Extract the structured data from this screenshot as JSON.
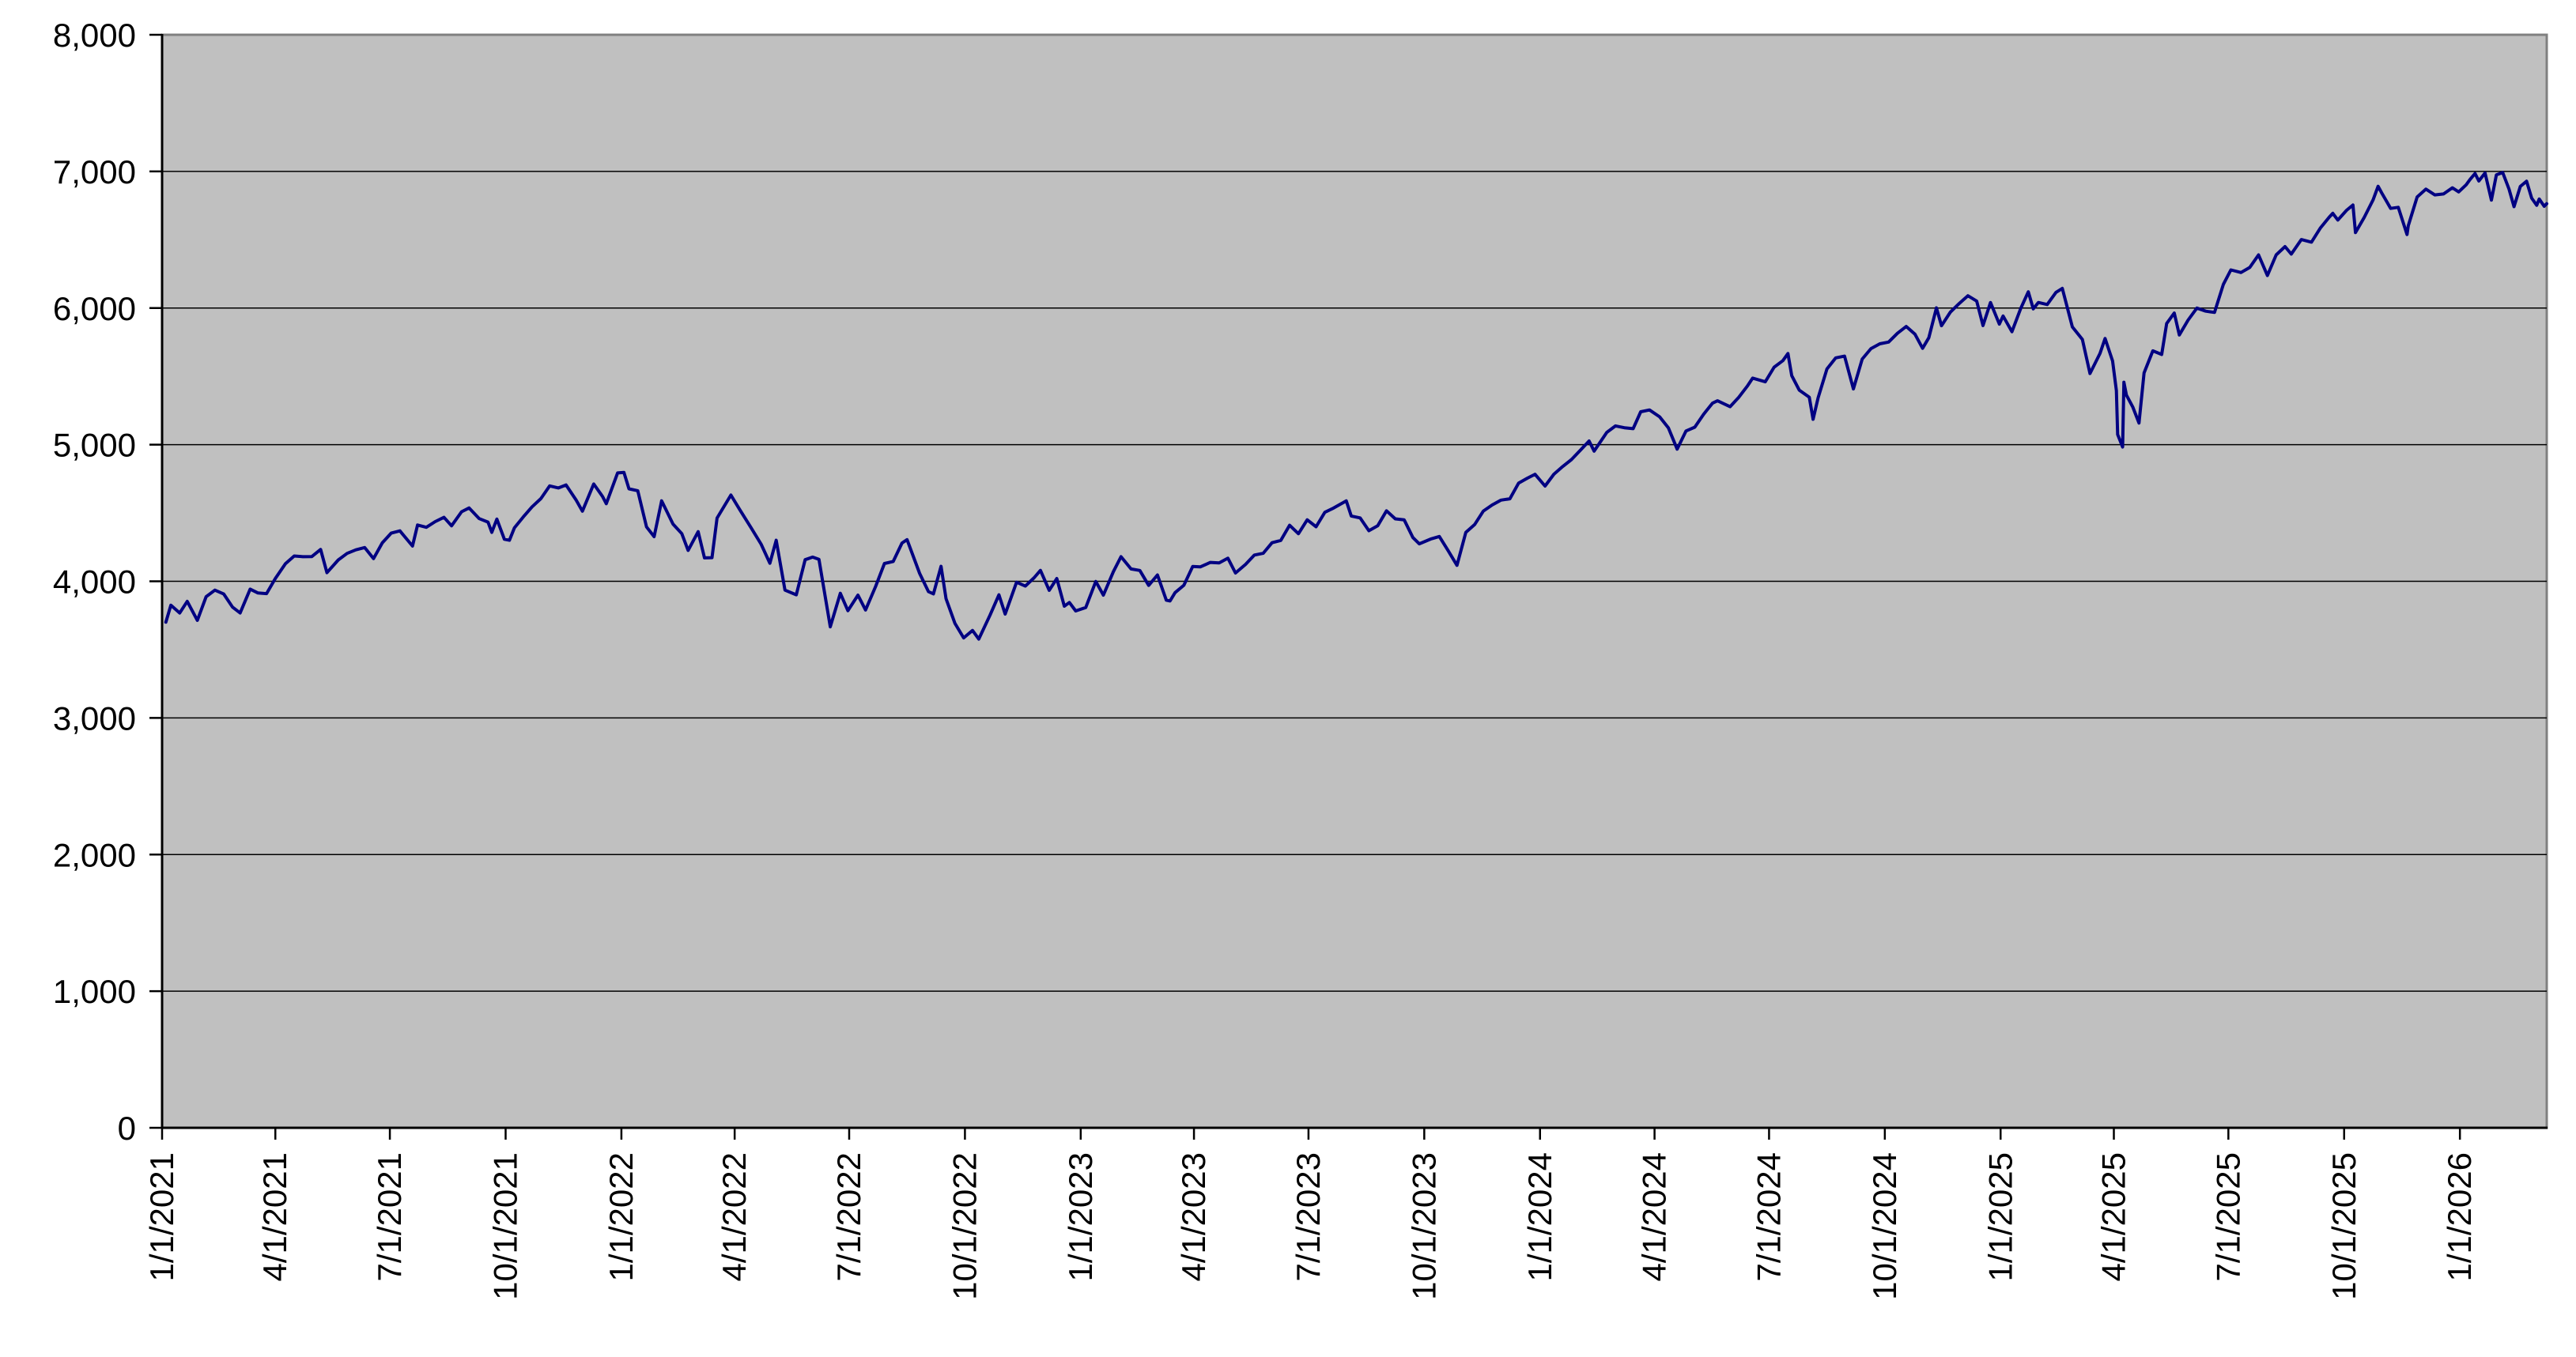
{
  "chart_data": {
    "type": "line",
    "title": "",
    "legend": "none",
    "grid": "horizontal",
    "colors": {
      "line": "#000082",
      "plot_bg": "#c0c0c0",
      "plot_border": "#808080",
      "gridline": "#000000",
      "axis": "#000000",
      "tick": "#000000",
      "label_text": "#000000",
      "page_bg": "#ffffff"
    },
    "y_axis": {
      "min": 0,
      "max": 8000,
      "step": 1000,
      "tick_values": [
        0,
        1000,
        2000,
        3000,
        4000,
        5000,
        6000,
        7000,
        8000
      ],
      "tick_labels": [
        "0",
        "1,000",
        "2,000",
        "3,000",
        "4,000",
        "5,000",
        "6,000",
        "7,000",
        "8,000"
      ]
    },
    "x_axis": {
      "start_date": "1/1/2021",
      "end_date": "3/11/2026",
      "label_rotation": -90,
      "tick_labels": [
        "1/1/2021",
        "4/1/2021",
        "7/1/2021",
        "10/1/2021",
        "1/1/2022",
        "4/1/2022",
        "7/1/2022",
        "10/1/2022",
        "1/1/2023",
        "4/1/2023",
        "7/1/2023",
        "10/1/2023",
        "1/1/2024",
        "4/1/2024",
        "7/1/2024",
        "10/1/2024",
        "1/1/2025",
        "4/1/2025",
        "7/1/2025",
        "10/1/2025",
        "1/1/2026"
      ]
    },
    "points": [
      [
        "1/4/2021",
        3701
      ],
      [
        "1/8/2021",
        3825
      ],
      [
        "1/15/2021",
        3768
      ],
      [
        "1/21/2021",
        3853
      ],
      [
        "1/29/2021",
        3714
      ],
      [
        "2/5/2021",
        3887
      ],
      [
        "2/12/2021",
        3935
      ],
      [
        "2/19/2021",
        3907
      ],
      [
        "2/26/2021",
        3811
      ],
      [
        "3/4/2021",
        3768
      ],
      [
        "3/12/2021",
        3943
      ],
      [
        "3/18/2021",
        3915
      ],
      [
        "3/25/2021",
        3910
      ],
      [
        "4/1/2021",
        4020
      ],
      [
        "4/9/2021",
        4129
      ],
      [
        "4/16/2021",
        4185
      ],
      [
        "4/23/2021",
        4180
      ],
      [
        "4/30/2021",
        4181
      ],
      [
        "5/7/2021",
        4233
      ],
      [
        "5/12/2021",
        4063
      ],
      [
        "5/21/2021",
        4156
      ],
      [
        "5/28/2021",
        4204
      ],
      [
        "6/4/2021",
        4230
      ],
      [
        "6/11/2021",
        4247
      ],
      [
        "6/18/2021",
        4166
      ],
      [
        "6/25/2021",
        4281
      ],
      [
        "7/2/2021",
        4352
      ],
      [
        "7/9/2021",
        4369
      ],
      [
        "7/19/2021",
        4258
      ],
      [
        "7/23/2021",
        4412
      ],
      [
        "7/30/2021",
        4395
      ],
      [
        "8/6/2021",
        4437
      ],
      [
        "8/13/2021",
        4468
      ],
      [
        "8/19/2021",
        4406
      ],
      [
        "8/27/2021",
        4509
      ],
      [
        "9/2/2021",
        4537
      ],
      [
        "9/10/2021",
        4459
      ],
      [
        "9/17/2021",
        4433
      ],
      [
        "9/20/2021",
        4358
      ],
      [
        "9/24/2021",
        4455
      ],
      [
        "9/30/2021",
        4308
      ],
      [
        "10/4/2021",
        4300
      ],
      [
        "10/8/2021",
        4391
      ],
      [
        "10/15/2021",
        4471
      ],
      [
        "10/22/2021",
        4545
      ],
      [
        "10/29/2021",
        4605
      ],
      [
        "11/5/2021",
        4698
      ],
      [
        "11/12/2021",
        4683
      ],
      [
        "11/18/2021",
        4705
      ],
      [
        "11/26/2021",
        4595
      ],
      [
        "12/1/2021",
        4513
      ],
      [
        "12/10/2021",
        4712
      ],
      [
        "12/17/2021",
        4621
      ],
      [
        "12/20/2021",
        4568
      ],
      [
        "12/29/2021",
        4793
      ],
      [
        "1/3/2022",
        4797
      ],
      [
        "1/7/2022",
        4677
      ],
      [
        "1/14/2022",
        4663
      ],
      [
        "1/21/2022",
        4398
      ],
      [
        "1/27/2022",
        4327
      ],
      [
        "2/2/2022",
        4589
      ],
      [
        "2/11/2022",
        4419
      ],
      [
        "2/18/2022",
        4349
      ],
      [
        "2/23/2022",
        4226
      ],
      [
        "3/3/2022",
        4363
      ],
      [
        "3/8/2022",
        4171
      ],
      [
        "3/14/2022",
        4173
      ],
      [
        "3/18/2022",
        4463
      ],
      [
        "3/29/2022",
        4631
      ],
      [
        "4/5/2022",
        4525
      ],
      [
        "4/14/2022",
        4393
      ],
      [
        "4/22/2022",
        4272
      ],
      [
        "4/29/2022",
        4132
      ],
      [
        "5/4/2022",
        4300
      ],
      [
        "5/11/2022",
        3935
      ],
      [
        "5/20/2022",
        3901
      ],
      [
        "5/27/2022",
        4158
      ],
      [
        "6/2/2022",
        4177
      ],
      [
        "6/7/2022",
        4160
      ],
      [
        "6/16/2022",
        3667
      ],
      [
        "6/24/2022",
        3912
      ],
      [
        "6/30/2022",
        3785
      ],
      [
        "7/8/2022",
        3899
      ],
      [
        "7/14/2022",
        3790
      ],
      [
        "7/22/2022",
        3962
      ],
      [
        "7/29/2022",
        4130
      ],
      [
        "8/5/2022",
        4145
      ],
      [
        "8/12/2022",
        4280
      ],
      [
        "8/16/2022",
        4305
      ],
      [
        "8/26/2022",
        4058
      ],
      [
        "9/2/2022",
        3924
      ],
      [
        "9/6/2022",
        3908
      ],
      [
        "9/12/2022",
        4110
      ],
      [
        "9/16/2022",
        3873
      ],
      [
        "9/23/2022",
        3693
      ],
      [
        "9/30/2022",
        3586
      ],
      [
        "10/7/2022",
        3640
      ],
      [
        "10/12/2022",
        3577
      ],
      [
        "10/21/2022",
        3753
      ],
      [
        "10/28/2022",
        3901
      ],
      [
        "11/2/2022",
        3760
      ],
      [
        "11/11/2022",
        3993
      ],
      [
        "11/18/2022",
        3965
      ],
      [
        "11/25/2022",
        4026
      ],
      [
        "11/30/2022",
        4080
      ],
      [
        "12/7/2022",
        3934
      ],
      [
        "12/13/2022",
        4020
      ],
      [
        "12/19/2022",
        3818
      ],
      [
        "12/23/2022",
        3845
      ],
      [
        "12/28/2022",
        3783
      ],
      [
        "1/5/2023",
        3808
      ],
      [
        "1/13/2023",
        3999
      ],
      [
        "1/19/2023",
        3899
      ],
      [
        "1/27/2023",
        4071
      ],
      [
        "2/2/2023",
        4180
      ],
      [
        "2/10/2023",
        4090
      ],
      [
        "2/17/2023",
        4079
      ],
      [
        "2/24/2023",
        3970
      ],
      [
        "3/3/2023",
        4046
      ],
      [
        "3/10/2023",
        3862
      ],
      [
        "3/13/2023",
        3856
      ],
      [
        "3/17/2023",
        3917
      ],
      [
        "3/24/2023",
        3971
      ],
      [
        "3/31/2023",
        4109
      ],
      [
        "4/6/2023",
        4105
      ],
      [
        "4/14/2023",
        4138
      ],
      [
        "4/21/2023",
        4134
      ],
      [
        "4/28/2023",
        4169
      ],
      [
        "5/4/2023",
        4061
      ],
      [
        "5/12/2023",
        4124
      ],
      [
        "5/19/2023",
        4192
      ],
      [
        "5/26/2023",
        4205
      ],
      [
        "6/2/2023",
        4282
      ],
      [
        "6/9/2023",
        4299
      ],
      [
        "6/16/2023",
        4410
      ],
      [
        "6/23/2023",
        4348
      ],
      [
        "6/30/2023",
        4450
      ],
      [
        "7/7/2023",
        4399
      ],
      [
        "7/14/2023",
        4505
      ],
      [
        "7/21/2023",
        4536
      ],
      [
        "7/31/2023",
        4589
      ],
      [
        "8/4/2023",
        4478
      ],
      [
        "8/11/2023",
        4464
      ],
      [
        "8/18/2023",
        4370
      ],
      [
        "8/25/2023",
        4406
      ],
      [
        "9/1/2023",
        4516
      ],
      [
        "9/8/2023",
        4457
      ],
      [
        "9/15/2023",
        4450
      ],
      [
        "9/22/2023",
        4320
      ],
      [
        "9/27/2023",
        4274
      ],
      [
        "10/6/2023",
        4309
      ],
      [
        "10/13/2023",
        4328
      ],
      [
        "10/20/2023",
        4224
      ],
      [
        "10/27/2023",
        4117
      ],
      [
        "11/3/2023",
        4358
      ],
      [
        "11/10/2023",
        4415
      ],
      [
        "11/17/2023",
        4514
      ],
      [
        "11/24/2023",
        4559
      ],
      [
        "12/1/2023",
        4594
      ],
      [
        "12/8/2023",
        4604
      ],
      [
        "12/15/2023",
        4719
      ],
      [
        "12/22/2023",
        4755
      ],
      [
        "12/28/2023",
        4783
      ],
      [
        "1/5/2024",
        4697
      ],
      [
        "1/12/2024",
        4784
      ],
      [
        "1/19/2024",
        4840
      ],
      [
        "1/26/2024",
        4891
      ],
      [
        "2/2/2024",
        4959
      ],
      [
        "2/9/2024",
        5027
      ],
      [
        "2/13/2024",
        4953
      ],
      [
        "2/23/2024",
        5089
      ],
      [
        "3/1/2024",
        5137
      ],
      [
        "3/8/2024",
        5124
      ],
      [
        "3/15/2024",
        5117
      ],
      [
        "3/21/2024",
        5241
      ],
      [
        "3/28/2024",
        5254
      ],
      [
        "4/5/2024",
        5204
      ],
      [
        "4/12/2024",
        5123
      ],
      [
        "4/19/2024",
        4967
      ],
      [
        "4/26/2024",
        5100
      ],
      [
        "5/3/2024",
        5128
      ],
      [
        "5/10/2024",
        5223
      ],
      [
        "5/17/2024",
        5303
      ],
      [
        "5/21/2024",
        5321
      ],
      [
        "5/31/2024",
        5278
      ],
      [
        "6/7/2024",
        5347
      ],
      [
        "6/14/2024",
        5432
      ],
      [
        "6/18/2024",
        5487
      ],
      [
        "6/28/2024",
        5460
      ],
      [
        "7/5/2024",
        5567
      ],
      [
        "7/12/2024",
        5615
      ],
      [
        "7/16/2024",
        5667
      ],
      [
        "7/19/2024",
        5505
      ],
      [
        "7/25/2024",
        5399
      ],
      [
        "8/2/2024",
        5347
      ],
      [
        "8/5/2024",
        5186
      ],
      [
        "8/9/2024",
        5344
      ],
      [
        "8/16/2024",
        5554
      ],
      [
        "8/23/2024",
        5635
      ],
      [
        "8/30/2024",
        5648
      ],
      [
        "9/6/2024",
        5408
      ],
      [
        "9/13/2024",
        5626
      ],
      [
        "9/20/2024",
        5703
      ],
      [
        "9/27/2024",
        5738
      ],
      [
        "10/4/2024",
        5751
      ],
      [
        "10/11/2024",
        5815
      ],
      [
        "10/18/2024",
        5865
      ],
      [
        "10/25/2024",
        5808
      ],
      [
        "10/31/2024",
        5705
      ],
      [
        "11/5/2024",
        5783
      ],
      [
        "11/11/2024",
        6001
      ],
      [
        "11/15/2024",
        5871
      ],
      [
        "11/22/2024",
        5969
      ],
      [
        "11/29/2024",
        6032
      ],
      [
        "12/6/2024",
        6090
      ],
      [
        "12/13/2024",
        6051
      ],
      [
        "12/18/2024",
        5872
      ],
      [
        "12/24/2024",
        6040
      ],
      [
        "12/31/2024",
        5882
      ],
      [
        "1/3/2025",
        5942
      ],
      [
        "1/10/2025",
        5827
      ],
      [
        "1/17/2025",
        5997
      ],
      [
        "1/23/2025",
        6119
      ],
      [
        "1/27/2025",
        5994
      ],
      [
        "1/31/2025",
        6041
      ],
      [
        "2/7/2025",
        6026
      ],
      [
        "2/14/2025",
        6115
      ],
      [
        "2/19/2025",
        6144
      ],
      [
        "2/27/2025",
        5862
      ],
      [
        "3/7/2025",
        5770
      ],
      [
        "3/13/2025",
        5521
      ],
      [
        "3/21/2025",
        5668
      ],
      [
        "3/25/2025",
        5777
      ],
      [
        "3/31/2025",
        5612
      ],
      [
        "4/3/2025",
        5396
      ],
      [
        "4/4/2025",
        5074
      ],
      [
        "4/8/2025",
        4983
      ],
      [
        "4/9/2025",
        5457
      ],
      [
        "4/11/2025",
        5363
      ],
      [
        "4/16/2025",
        5276
      ],
      [
        "4/21/2025",
        5158
      ],
      [
        "4/25/2025",
        5525
      ],
      [
        "5/2/2025",
        5687
      ],
      [
        "5/9/2025",
        5660
      ],
      [
        "5/13/2025",
        5887
      ],
      [
        "5/19/2025",
        5963
      ],
      [
        "5/23/2025",
        5803
      ],
      [
        "5/30/2025",
        5912
      ],
      [
        "6/6/2025",
        6000
      ],
      [
        "6/13/2025",
        5977
      ],
      [
        "6/20/2025",
        5968
      ],
      [
        "6/27/2025",
        6173
      ],
      [
        "7/3/2025",
        6279
      ],
      [
        "7/11/2025",
        6260
      ],
      [
        "7/18/2025",
        6297
      ],
      [
        "7/25/2025",
        6389
      ],
      [
        "8/1/2025",
        6238
      ],
      [
        "8/8/2025",
        6389
      ],
      [
        "8/15/2025",
        6450
      ],
      [
        "8/20/2025",
        6395
      ],
      [
        "8/28/2025",
        6501
      ],
      [
        "9/5/2025",
        6482
      ],
      [
        "9/12/2025",
        6584
      ],
      [
        "9/19/2025",
        6664
      ],
      [
        "9/22/2025",
        6693
      ],
      [
        "9/26/2025",
        6644
      ],
      [
        "10/3/2025",
        6716
      ],
      [
        "10/8/2025",
        6754
      ],
      [
        "10/10/2025",
        6552
      ],
      [
        "10/17/2025",
        6664
      ],
      [
        "10/24/2025",
        6792
      ],
      [
        "10/28/2025",
        6891
      ],
      [
        "10/31/2025",
        6840
      ],
      [
        "11/7/2025",
        6729
      ],
      [
        "11/13/2025",
        6737
      ],
      [
        "11/20/2025",
        6538
      ],
      [
        "11/21/2025",
        6603
      ],
      [
        "11/28/2025",
        6813
      ],
      [
        "12/5/2025",
        6870
      ],
      [
        "12/12/2025",
        6828
      ],
      [
        "12/19/2025",
        6835
      ],
      [
        "12/26/2025",
        6880
      ],
      [
        "12/31/2025",
        6850
      ],
      [
        "1/6/2026",
        6902
      ],
      [
        "1/9/2026",
        6940
      ],
      [
        "1/13/2026",
        6985
      ],
      [
        "1/16/2026",
        6930
      ],
      [
        "1/21/2026",
        6988
      ],
      [
        "1/26/2026",
        6790
      ],
      [
        "1/30/2026",
        6975
      ],
      [
        "2/4/2026",
        6992
      ],
      [
        "2/9/2026",
        6870
      ],
      [
        "2/13/2026",
        6742
      ],
      [
        "2/18/2026",
        6890
      ],
      [
        "2/23/2026",
        6928
      ],
      [
        "2/27/2026",
        6805
      ],
      [
        "3/3/2026",
        6752
      ],
      [
        "3/5/2026",
        6798
      ],
      [
        "3/9/2026",
        6745
      ],
      [
        "3/11/2026",
        6764
      ]
    ]
  }
}
